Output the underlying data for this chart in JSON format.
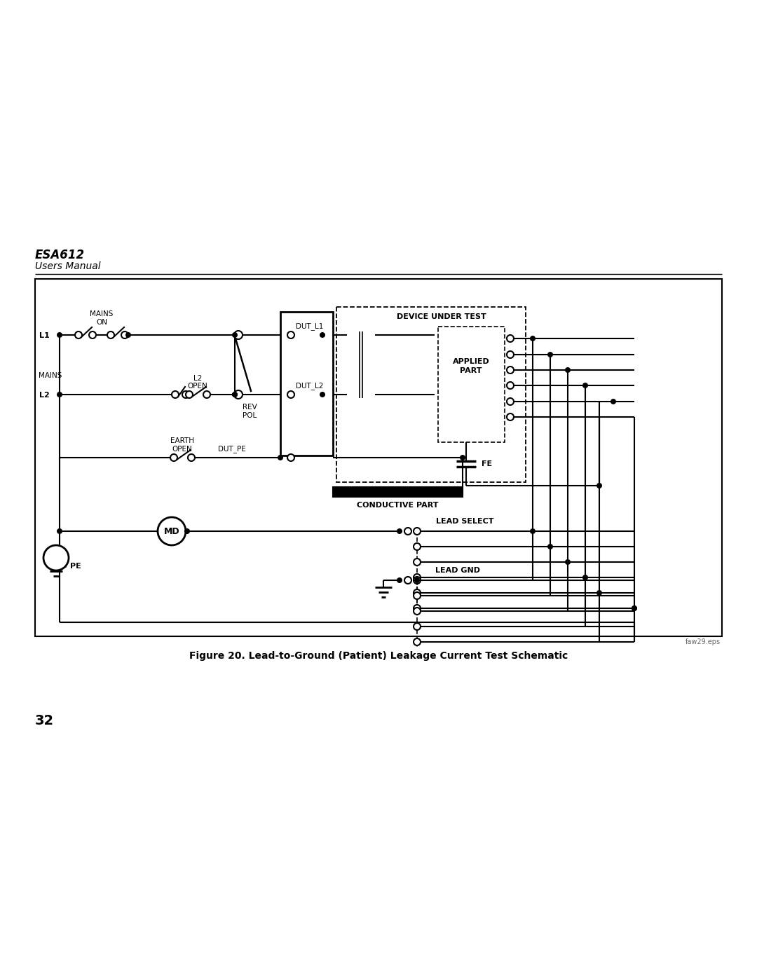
{
  "title": "ESA612",
  "subtitle": "Users Manual",
  "figure_caption": "Figure 20. Lead-to-Ground (Patient) Leakage Current Test Schematic",
  "page_number": "32",
  "file_ref": "faw29.eps",
  "bg_color": "#ffffff",
  "line_color": "#000000",
  "box_border_color": "#000000",
  "header_line_color": "#000000"
}
